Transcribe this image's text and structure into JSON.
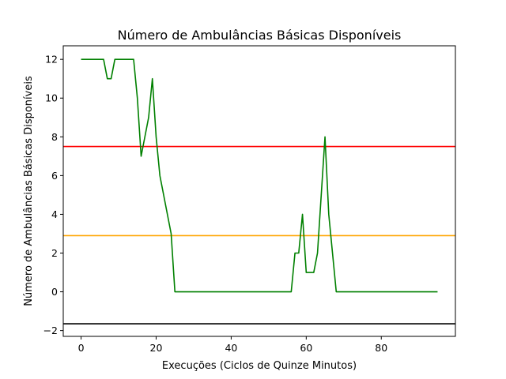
{
  "chart_data": {
    "type": "line",
    "title": "Número de Ambulâncias Básicas Disponíveis",
    "xlabel": "Execuções (Ciclos de Quinze Minutos)",
    "ylabel": "Número de Ambulâncias Básicas Disponíveis",
    "xlim": [
      -4.75,
      99.75
    ],
    "ylim": [
      -2.3,
      12.7
    ],
    "xticks": [
      0,
      20,
      40,
      60,
      80
    ],
    "yticks": [
      -2,
      0,
      2,
      4,
      6,
      8,
      10,
      12
    ],
    "grid": false,
    "series": [
      {
        "color": "#008000",
        "x": [
          0,
          6,
          7,
          8,
          9,
          14,
          15,
          16,
          18,
          19,
          20,
          21,
          24,
          25,
          56,
          57,
          58,
          59,
          60,
          62,
          63,
          65,
          66,
          67,
          68,
          95
        ],
        "y": [
          12,
          12,
          11,
          11,
          12,
          12,
          10,
          7,
          9,
          11,
          8,
          6,
          3,
          0,
          0,
          2,
          2,
          4,
          1,
          1,
          2,
          8,
          4,
          2,
          0,
          0
        ]
      }
    ],
    "hlines": [
      {
        "y": 7.5,
        "color": "#ff0000"
      },
      {
        "y": 2.9,
        "color": "#ffa500"
      },
      {
        "y": -1.65,
        "color": "#000000"
      }
    ]
  }
}
